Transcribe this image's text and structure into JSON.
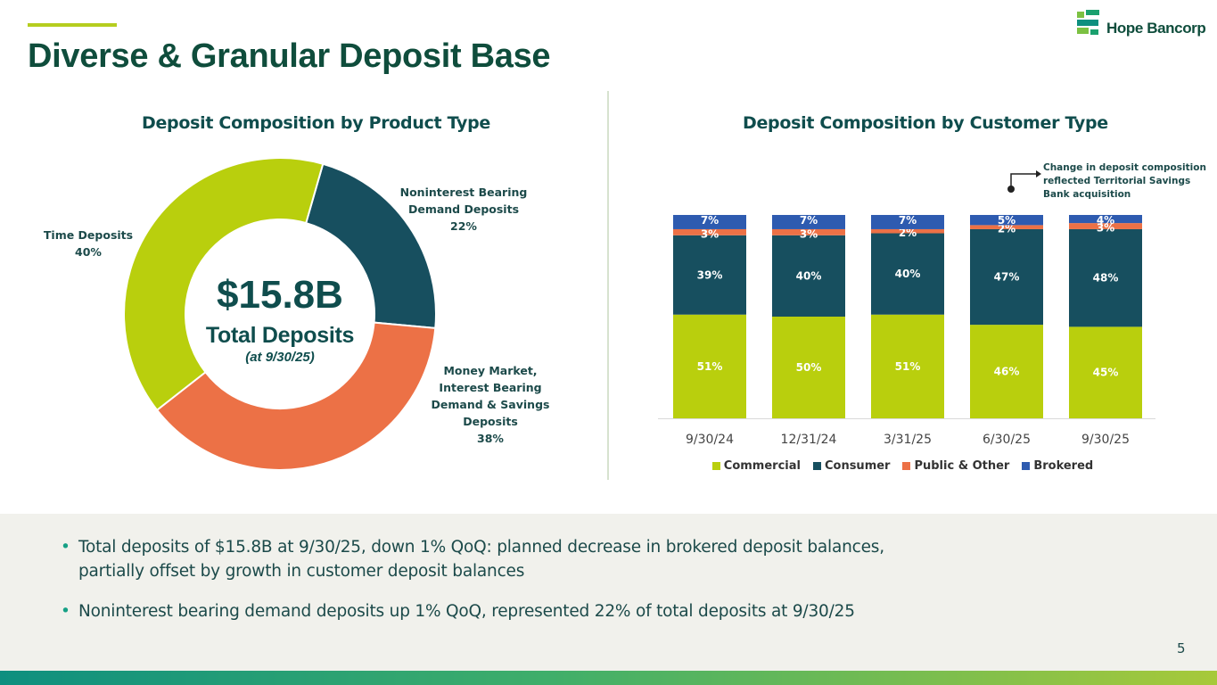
{
  "header": {
    "title": "Diverse & Granular Deposit Base",
    "logo_text": "Hope Bancorp"
  },
  "colors": {
    "commercial": "#b9cf0d",
    "consumer": "#174f5f",
    "public_other": "#ec7146",
    "brokered": "#2e5bb0",
    "title": "#0f4d3c"
  },
  "left_panel": {
    "title": "Deposit Composition by Product Type",
    "center_amount": "$15.8B",
    "center_label": "Total Deposits",
    "center_date": "(at 9/30/25)",
    "labels": {
      "noninterest": [
        "Noninterest Bearing",
        "Demand Deposits",
        "22%"
      ],
      "money_market": [
        "Money Market,",
        "Interest Bearing",
        "Demand & Savings",
        "Deposits",
        "38%"
      ],
      "time": [
        "Time Deposits",
        "40%"
      ]
    }
  },
  "right_panel": {
    "title": "Deposit Composition by Customer Type",
    "callout": "Change in deposit composition reflected Territorial Savings Bank acquisition"
  },
  "chart_data": [
    {
      "type": "pie",
      "title": "Deposit Composition by Product Type",
      "categories": [
        "Noninterest Bearing Demand Deposits",
        "Money Market, Interest Bearing Demand & Savings Deposits",
        "Time Deposits"
      ],
      "values": [
        22,
        38,
        40
      ],
      "colors": [
        "#174f5f",
        "#ec7146",
        "#b9cf0d"
      ]
    },
    {
      "type": "bar",
      "stacked": true,
      "title": "Deposit Composition by Customer Type",
      "categories": [
        "9/30/24",
        "12/31/24",
        "3/31/25",
        "6/30/25",
        "9/30/25"
      ],
      "series": [
        {
          "name": "Commercial",
          "values": [
            51,
            50,
            51,
            46,
            45
          ],
          "labels": [
            "51%",
            "50%",
            "51%",
            "46%",
            "45%"
          ],
          "color": "#b9cf0d"
        },
        {
          "name": "Consumer",
          "values": [
            39,
            40,
            40,
            47,
            48
          ],
          "labels": [
            "39%",
            "40%",
            "40%",
            "47%",
            "48%"
          ],
          "color": "#174f5f"
        },
        {
          "name": "Public & Other",
          "values": [
            3,
            3,
            2,
            2,
            3
          ],
          "labels": [
            "3%",
            "3%",
            "2%",
            "2%",
            "3%"
          ],
          "color": "#ec7146"
        },
        {
          "name": "Brokered",
          "values": [
            7,
            7,
            7,
            5,
            4
          ],
          "labels": [
            "7%",
            "7%",
            "7%",
            "5%",
            "4%"
          ],
          "color": "#2e5bb0"
        }
      ],
      "ylim": [
        0,
        100
      ],
      "legend": "bottom"
    }
  ],
  "bullets": [
    "Total deposits of $15.8B at 9/30/25, down 1% QoQ: planned decrease in brokered deposit balances, partially offset by growth in customer deposit balances",
    "Noninterest bearing demand deposits up 1% QoQ, represented 22% of total deposits at 9/30/25"
  ],
  "page_number": "5"
}
